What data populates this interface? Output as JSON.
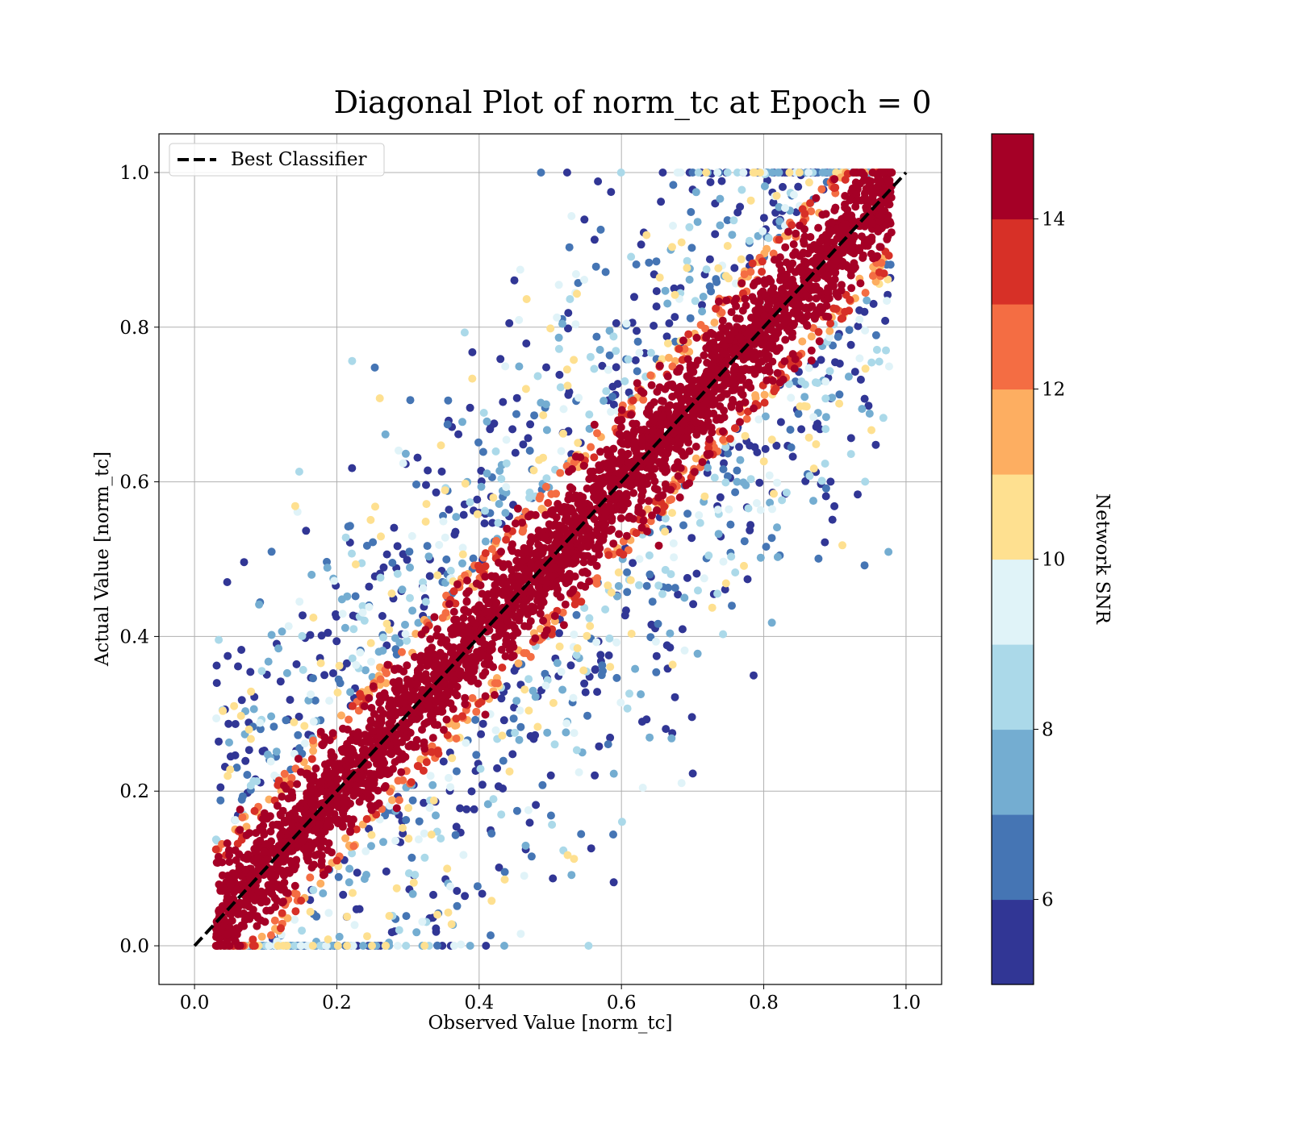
{
  "chart_data": {
    "type": "scatter",
    "title": "Diagonal Plot of norm_tc at Epoch = 0",
    "xlabel": "Observed Value [norm_tc]",
    "ylabel": "Actual Value [norm_tc]",
    "xlim": [
      -0.05,
      1.05
    ],
    "ylim": [
      -0.05,
      1.05
    ],
    "xticks": [
      "0.0",
      "0.2",
      "0.4",
      "0.6",
      "0.8",
      "1.0"
    ],
    "yticks": [
      "0.0",
      "0.2",
      "0.4",
      "0.6",
      "0.8",
      "1.0"
    ],
    "grid": true,
    "legend": {
      "placement": "upper-left",
      "entries": [
        {
          "label": "Best Classifier",
          "style": "black dashed line"
        }
      ]
    },
    "reference_line": {
      "name": "Best Classifier",
      "x": [
        0,
        1
      ],
      "y": [
        0,
        1
      ]
    },
    "colorbar": {
      "label": "Network SNR",
      "range": [
        5,
        15
      ],
      "ticks": [
        "6",
        "8",
        "10",
        "12",
        "14"
      ],
      "colors": [
        "#313695",
        "#4575b4",
        "#74add1",
        "#abd9e9",
        "#e0f3f8",
        "#fee090",
        "#fdae61",
        "#f46d43",
        "#d73027",
        "#a50026"
      ]
    },
    "description_of_points": "Dense band of high-SNR (>=14) points along the diagonal, lower-SNR points scattered widely on both sides; points lie within x in [0.03, 0.98], y in [0, 1]."
  }
}
